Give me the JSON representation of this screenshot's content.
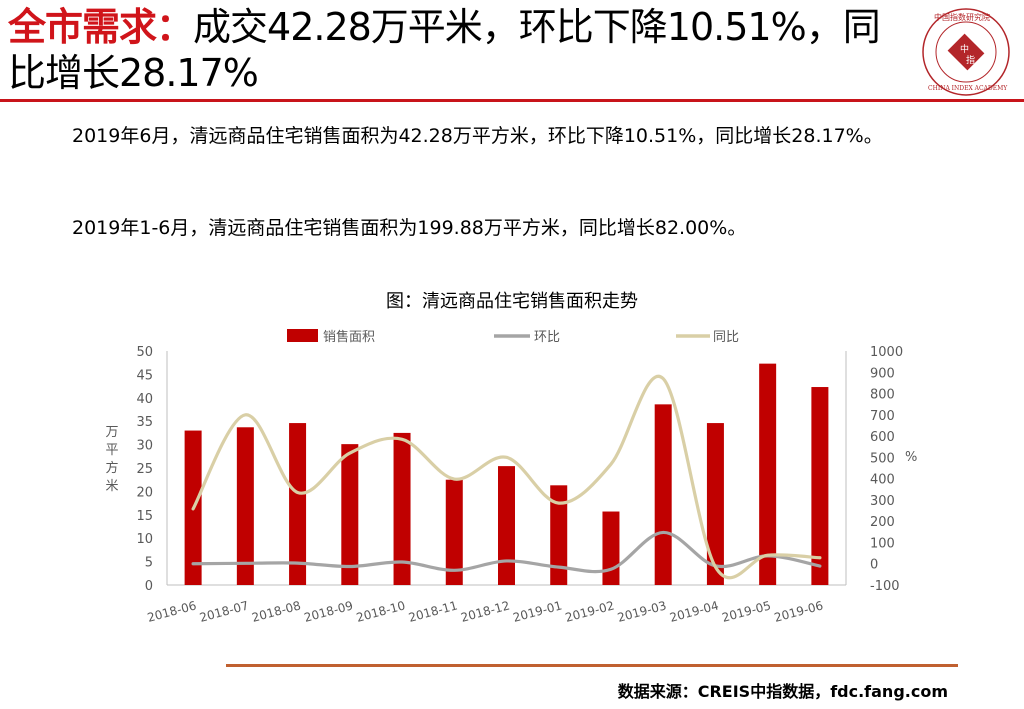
{
  "header": {
    "title_highlight": "全市需求：",
    "title_rest": "成交42.28万平米，环比下降10.51%，同比增长28.17%",
    "logo_center_top": "中",
    "logo_center_bottom": "指",
    "logo_ring_text": "CHINA INDEX ACADEMY",
    "logo_top_text": "中国指数研究院",
    "brand_red": "#c8141a"
  },
  "body": {
    "paragraph_1": "2019年6月，清远商品住宅销售面积为42.28万平方米，环比下降10.51%，同比增长28.17%。",
    "paragraph_2": "2019年1-6月，清远商品住宅销售面积为199.88万平方米，同比增长82.00%。"
  },
  "chart_title": "图：清远商品住宅销售面积走势",
  "chart_data": {
    "type": "bar",
    "categories": [
      "2018-06",
      "2018-07",
      "2018-08",
      "2018-09",
      "2018-10",
      "2018-11",
      "2018-12",
      "2019-01",
      "2019-02",
      "2019-03",
      "2019-04",
      "2019-05",
      "2019-06"
    ],
    "series": [
      {
        "name": "销售面积",
        "type": "bar",
        "axis": "left",
        "color": "#c00000",
        "values": [
          33,
          33.7,
          34.6,
          30.1,
          32.5,
          22.5,
          25.4,
          21.3,
          15.7,
          38.6,
          34.6,
          47.3,
          42.3
        ]
      },
      {
        "name": "环比",
        "type": "line",
        "axis": "right",
        "color": "#a5a5a5",
        "values": [
          0,
          2,
          3,
          -13,
          8,
          -31,
          13,
          -16,
          -26,
          147,
          -10,
          37,
          -11
        ]
      },
      {
        "name": "同比",
        "type": "line",
        "axis": "right",
        "color": "#d9cfa6",
        "values": [
          258,
          700,
          335,
          520,
          585,
          398,
          500,
          285,
          468,
          870,
          -15,
          40,
          28
        ]
      }
    ],
    "ylabel_left": "万平方米",
    "ylabel_right": "%",
    "ylim_left": [
      0,
      50
    ],
    "yticks_left": [
      "0",
      "5",
      "10",
      "15",
      "20",
      "25",
      "30",
      "35",
      "40",
      "45",
      "50"
    ],
    "ylim_right": [
      -100,
      1000
    ],
    "yticks_right": [
      "-100",
      "0",
      "100",
      "200",
      "300",
      "400",
      "500",
      "600",
      "700",
      "800",
      "900",
      "1000"
    ],
    "legend_position": "top",
    "grid": false
  },
  "footer": {
    "source": "数据来源：CREIS中指数据，fdc.fang.com"
  }
}
